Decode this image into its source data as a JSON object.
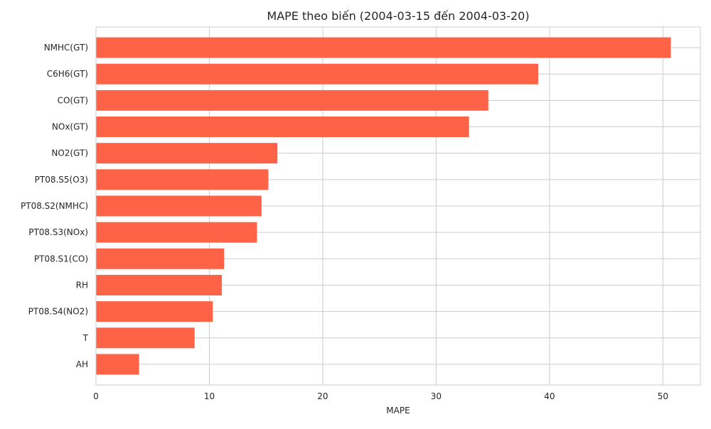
{
  "chart_data": {
    "type": "bar",
    "orientation": "horizontal",
    "title": "MAPE theo biến (2004-03-15 đến 2004-03-20)",
    "xlabel": "MAPE",
    "ylabel": "",
    "xlim": [
      0,
      53.3
    ],
    "xticks": [
      0,
      10,
      20,
      30,
      40,
      50
    ],
    "grid": true,
    "bar_color": "#ff6347",
    "grid_color": "#cccccc",
    "categories": [
      "NMHC(GT)",
      "C6H6(GT)",
      "CO(GT)",
      "NOx(GT)",
      "NO2(GT)",
      "PT08.S5(O3)",
      "PT08.S2(NMHC)",
      "PT08.S3(NOx)",
      "PT08.S1(CO)",
      "RH",
      "PT08.S4(NO2)",
      "T",
      "AH"
    ],
    "values": [
      50.7,
      39.0,
      34.6,
      32.9,
      16.0,
      15.2,
      14.6,
      14.2,
      11.3,
      11.1,
      10.3,
      8.7,
      3.8
    ]
  }
}
